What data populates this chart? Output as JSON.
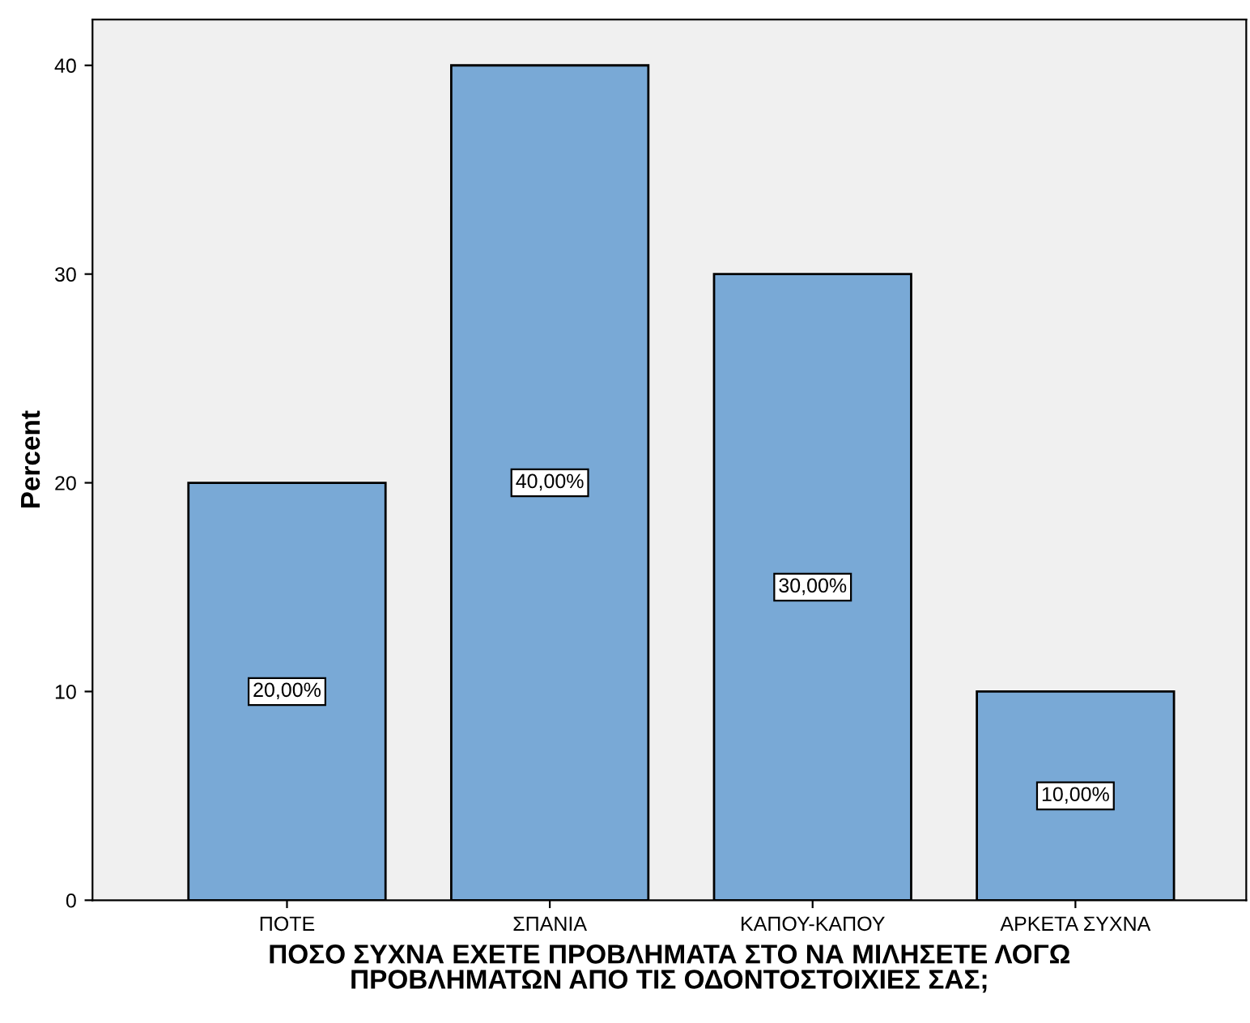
{
  "chart_data": {
    "type": "bar",
    "categories": [
      "ΠΟΤΕ",
      "ΣΠΑΝΙΑ",
      "ΚΑΠΟΥ-ΚΑΠΟΥ",
      "ΑΡΚΕΤΑ ΣΥΧΝΑ"
    ],
    "values": [
      20,
      40,
      30,
      10
    ],
    "value_labels": [
      "20,00%",
      "40,00%",
      "30,00%",
      "10,00%"
    ],
    "color": "#79a9d6",
    "xlabel": "ΠΟΣΟ ΣΥΧΝΑ ΕΧΕΤΕ ΠΡΟΒΛΗΜΑΤΑ ΣΤΟ ΝΑ ΜΙΛΗΣΕΤΕ ΛΟΓΩ\nΠΡΟΒΛΗΜΑΤΩΝ ΑΠΟ ΤΙΣ ΟΔΟΝΤΟΣΤΟΙΧΙΕΣ ΣΑΣ;",
    "ylabel": "Percent",
    "ylim": [
      0,
      42.2
    ],
    "yticks": [
      0,
      10,
      20,
      30,
      40
    ],
    "grid": false,
    "legend": false
  }
}
